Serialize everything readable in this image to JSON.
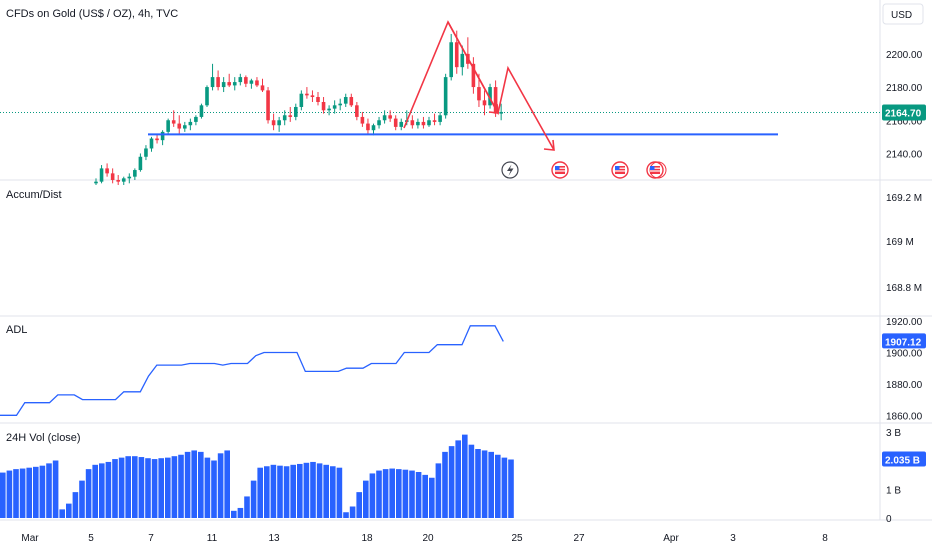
{
  "chart_data": [
    {
      "type": "candlestick",
      "title": "CFDs on Gold (US$ / OZ), 4h, TVC",
      "currency": "USD",
      "yticks": [
        "2200.00",
        "2180.00",
        "2160.00",
        "2140.00"
      ],
      "ylim": [
        2124,
        2218
      ],
      "last_price": "2164.70",
      "last_price_value": 2164.7,
      "up_color": "#089981",
      "down_color": "#f23645",
      "support_line": {
        "value": 2151.5,
        "color": "#2962ff"
      },
      "annotation_color": "#f23645",
      "candles_ohlc": [
        [
          2122,
          2125,
          2121,
          2123
        ],
        [
          2123,
          2133,
          2122,
          2131
        ],
        [
          2131,
          2134,
          2126,
          2128
        ],
        [
          2128,
          2131,
          2122,
          2124
        ],
        [
          2124,
          2127,
          2121,
          2123
        ],
        [
          2123,
          2126,
          2121,
          2125
        ],
        [
          2125,
          2128,
          2122,
          2126
        ],
        [
          2126,
          2131,
          2124,
          2130
        ],
        [
          2130,
          2140,
          2129,
          2138
        ],
        [
          2138,
          2145,
          2136,
          2143
        ],
        [
          2143,
          2150,
          2141,
          2149
        ],
        [
          2149,
          2152,
          2146,
          2148
        ],
        [
          2148,
          2154,
          2145,
          2153
        ],
        [
          2153,
          2161,
          2152,
          2160
        ],
        [
          2160,
          2166,
          2156,
          2158
        ],
        [
          2158,
          2163,
          2152,
          2155
        ],
        [
          2155,
          2159,
          2153,
          2157
        ],
        [
          2157,
          2161,
          2154,
          2159
        ],
        [
          2159,
          2163,
          2157,
          2162
        ],
        [
          2162,
          2170,
          2161,
          2169
        ],
        [
          2169,
          2181,
          2168,
          2180
        ],
        [
          2180,
          2194,
          2178,
          2186
        ],
        [
          2186,
          2190,
          2178,
          2180
        ],
        [
          2180,
          2186,
          2177,
          2183
        ],
        [
          2183,
          2188,
          2180,
          2181
        ],
        [
          2181,
          2186,
          2178,
          2183
        ],
        [
          2183,
          2188,
          2181,
          2186
        ],
        [
          2186,
          2187,
          2180,
          2182
        ],
        [
          2182,
          2185,
          2179,
          2184
        ],
        [
          2184,
          2186,
          2180,
          2181
        ],
        [
          2181,
          2185,
          2177,
          2178
        ],
        [
          2178,
          2180,
          2158,
          2160
        ],
        [
          2160,
          2164,
          2154,
          2157
        ],
        [
          2157,
          2162,
          2153,
          2160
        ],
        [
          2160,
          2166,
          2157,
          2163
        ],
        [
          2163,
          2168,
          2159,
          2162
        ],
        [
          2162,
          2170,
          2160,
          2168
        ],
        [
          2168,
          2178,
          2166,
          2176
        ],
        [
          2176,
          2180,
          2173,
          2175
        ],
        [
          2175,
          2178,
          2171,
          2174
        ],
        [
          2174,
          2177,
          2169,
          2171
        ],
        [
          2171,
          2174,
          2164,
          2166
        ],
        [
          2166,
          2169,
          2163,
          2167
        ],
        [
          2167,
          2172,
          2164,
          2169
        ],
        [
          2169,
          2173,
          2166,
          2170
        ],
        [
          2170,
          2176,
          2168,
          2174
        ],
        [
          2174,
          2176,
          2168,
          2169
        ],
        [
          2169,
          2171,
          2160,
          2162
        ],
        [
          2162,
          2165,
          2156,
          2158
        ],
        [
          2158,
          2161,
          2152,
          2154
        ],
        [
          2154,
          2158,
          2151,
          2157
        ],
        [
          2157,
          2162,
          2155,
          2160
        ],
        [
          2160,
          2166,
          2158,
          2163
        ],
        [
          2163,
          2166,
          2159,
          2161
        ],
        [
          2161,
          2163,
          2154,
          2156
        ],
        [
          2156,
          2161,
          2154,
          2159
        ],
        [
          2159,
          2166,
          2157,
          2160
        ],
        [
          2160,
          2163,
          2155,
          2157
        ],
        [
          2157,
          2161,
          2155,
          2159
        ],
        [
          2159,
          2162,
          2155,
          2157
        ],
        [
          2157,
          2162,
          2156,
          2160
        ],
        [
          2160,
          2164,
          2157,
          2159
        ],
        [
          2159,
          2165,
          2157,
          2163
        ],
        [
          2163,
          2188,
          2161,
          2186
        ],
        [
          2186,
          2212,
          2184,
          2207
        ],
        [
          2207,
          2214,
          2188,
          2192
        ],
        [
          2192,
          2205,
          2187,
          2200
        ],
        [
          2200,
          2210,
          2191,
          2194
        ],
        [
          2194,
          2198,
          2176,
          2180
        ],
        [
          2180,
          2188,
          2168,
          2172
        ],
        [
          2172,
          2178,
          2163,
          2169
        ],
        [
          2169,
          2182,
          2167,
          2180
        ],
        [
          2180,
          2184,
          2162,
          2164
        ],
        [
          2164,
          2170,
          2160,
          2165
        ]
      ]
    },
    {
      "type": "line",
      "title": "Accum/Dist",
      "yticks": [
        "169.2 M",
        "169 M",
        "168.8 M"
      ]
    },
    {
      "type": "line",
      "title": "ADL",
      "yticks": [
        "1920.00",
        "1900.00",
        "1880.00",
        "1860.00"
      ],
      "ylim": [
        1857,
        1922
      ],
      "last_value": "1907.12",
      "color": "#2962ff",
      "values": [
        1860,
        1860,
        1860,
        1868,
        1868,
        1868,
        1868,
        1873,
        1873,
        1873,
        1870,
        1870,
        1870,
        1870,
        1870,
        1875,
        1875,
        1875,
        1885,
        1892,
        1892,
        1892,
        1892,
        1893,
        1893,
        1893,
        1893,
        1892,
        1893,
        1893,
        1893,
        1898,
        1900,
        1900,
        1900,
        1900,
        1900,
        1888,
        1888,
        1888,
        1888,
        1888,
        1890,
        1890,
        1890,
        1893,
        1893,
        1893,
        1893,
        1900,
        1900,
        1900,
        1900,
        1905,
        1905,
        1905,
        1905,
        1917,
        1917,
        1917,
        1917,
        1907.12
      ]
    },
    {
      "type": "bar",
      "title": "24H Vol (close)",
      "yticks": [
        "3 B",
        "2 B",
        "1 B",
        "0"
      ],
      "ylim": [
        0,
        3.2
      ],
      "last_value": "2.035 B",
      "color": "#2962ff",
      "values": [
        1.58,
        1.65,
        1.7,
        1.72,
        1.75,
        1.78,
        1.82,
        1.9,
        2.0,
        0.3,
        0.5,
        0.9,
        1.3,
        1.7,
        1.85,
        1.9,
        1.95,
        2.05,
        2.1,
        2.15,
        2.15,
        2.12,
        2.08,
        2.05,
        2.08,
        2.1,
        2.15,
        2.2,
        2.3,
        2.35,
        2.3,
        2.1,
        2.0,
        2.25,
        2.35,
        0.25,
        0.35,
        0.75,
        1.3,
        1.75,
        1.8,
        1.85,
        1.82,
        1.8,
        1.85,
        1.88,
        1.92,
        1.95,
        1.9,
        1.85,
        1.8,
        1.75,
        0.2,
        0.4,
        0.9,
        1.3,
        1.55,
        1.65,
        1.7,
        1.72,
        1.7,
        1.68,
        1.65,
        1.6,
        1.5,
        1.4,
        1.9,
        2.3,
        2.5,
        2.7,
        2.9,
        2.55,
        2.4,
        2.35,
        2.3,
        2.2,
        2.1,
        2.035
      ]
    }
  ],
  "x_axis": {
    "labels": [
      "Mar",
      "5",
      "7",
      "11",
      "13",
      "18",
      "20",
      "25",
      "27",
      "Apr",
      "3",
      "8"
    ]
  },
  "events": {
    "lightning_icon": "lightning-icon",
    "flag_icons": [
      "us-flag-icon",
      "us-flag-icon",
      "us-flag-icon"
    ]
  }
}
